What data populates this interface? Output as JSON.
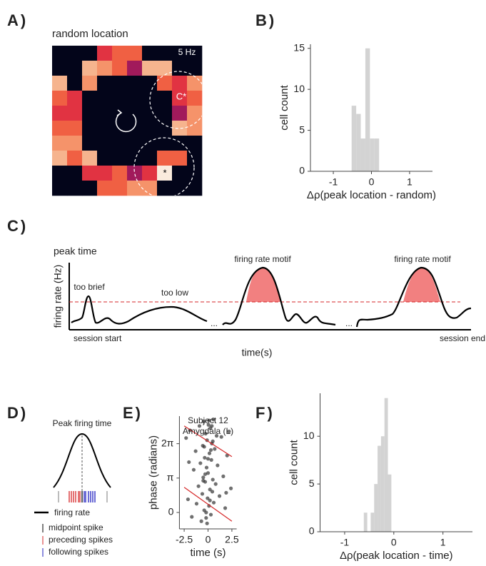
{
  "chart_data": [
    {
      "type": "heatmap",
      "panel": "A)",
      "title": "random location",
      "values": [
        [
          0,
          0,
          0,
          2.5,
          3,
          3,
          0,
          0,
          0,
          0
        ],
        [
          0,
          0,
          4,
          3.5,
          3,
          1.5,
          4,
          4,
          0,
          0
        ],
        [
          4,
          0,
          3.5,
          0,
          0,
          0,
          0,
          3,
          2.5,
          3.5
        ],
        [
          3,
          2.5,
          0,
          0,
          0,
          0,
          0,
          0,
          2.5,
          3
        ],
        [
          2.5,
          2.5,
          0,
          0,
          0,
          0,
          0,
          0,
          1.5,
          3.5
        ],
        [
          3,
          3,
          0,
          0,
          0,
          0,
          0,
          0,
          4,
          3.5
        ],
        [
          3.5,
          3.5,
          0,
          0,
          0,
          0,
          0,
          0,
          0,
          0
        ],
        [
          4,
          3,
          4,
          0,
          0,
          0,
          0,
          3,
          3,
          0
        ],
        [
          0,
          0,
          2.5,
          2.5,
          3,
          1.5,
          2.5,
          5,
          0,
          0
        ],
        [
          0,
          0,
          0,
          3,
          3,
          3.5,
          3.5,
          0,
          0,
          0
        ]
      ],
      "annotations": [
        "5 Hz",
        "C*",
        "*"
      ]
    },
    {
      "type": "histogram",
      "panel": "B)",
      "xlabel": "Δρ(peak location - random)",
      "ylabel": "cell count",
      "bins": [
        -0.52,
        -0.4,
        -0.28,
        -0.16,
        -0.04,
        0.08,
        0.2
      ],
      "values": [
        8,
        7,
        4,
        15,
        4,
        4
      ],
      "color": "#d3d3d3",
      "xlim": [
        -1.6,
        1.6
      ],
      "xticks": [
        -1,
        0,
        1
      ],
      "ylim": [
        0,
        15.5
      ],
      "yticks": [
        0,
        5,
        10,
        15
      ]
    },
    {
      "type": "scatter",
      "panel": "E)",
      "title": "Subject 12",
      "subtitle": "Amygdala (L)",
      "xlabel": "time (s)",
      "ylabel": "phase (radians)",
      "xlim": [
        -3,
        3
      ],
      "xticks": [
        -2.5,
        0,
        2.5
      ],
      "ylim": [
        -1.5,
        8.8
      ],
      "yticks": [
        {
          "value": 0,
          "label": "0"
        },
        {
          "value": 3.1416,
          "label": "π"
        },
        {
          "value": 6.2832,
          "label": "2π"
        }
      ],
      "series": [
        {
          "color": "#333333",
          "x": [
            -2.3,
            -2.1,
            -1.9,
            -1.7,
            -1.5,
            -1.3,
            -1.2,
            -1.0,
            -0.9,
            -0.8,
            -0.7,
            -0.6,
            -0.55,
            -0.5,
            -0.45,
            -0.4,
            -0.35,
            -0.3,
            -0.25,
            -0.2,
            -0.15,
            -0.1,
            -0.05,
            0,
            0.05,
            0.1,
            0.15,
            0.2,
            0.25,
            0.3,
            0.35,
            0.4,
            0.45,
            0.5,
            0.55,
            0.6,
            0.7,
            0.8,
            0.9,
            1.0,
            1.2,
            1.4,
            1.6,
            1.8,
            2.0,
            2.2,
            2.4,
            -0.4,
            -0.2,
            0,
            0.2,
            0.4,
            -0.3,
            0.1,
            0.3,
            -0.1,
            -0.5,
            0.5,
            -2.0,
            1.9
          ],
          "values": [
            6.8,
            1.2,
            7.5,
            -0.4,
            3.9,
            5.6,
            0.8,
            2.4,
            7.9,
            4.5,
            -0.8,
            1.7,
            6.1,
            3.2,
            8.3,
            0.2,
            5.0,
            2.8,
            7.2,
            -0.5,
            4.1,
            6.6,
            1.3,
            3.6,
            8.0,
            0.6,
            5.4,
            2.1,
            7.7,
            -0.2,
            4.8,
            6.3,
            1.9,
            3.0,
            8.5,
            0.9,
            5.8,
            2.6,
            7.0,
            4.3,
            1.5,
            6.9,
            3.3,
            0.4,
            5.2,
            7.4,
            2.2,
            6.0,
            0.0,
            4.9,
            1.1,
            7.9,
            3.5,
            8.4,
            5.7,
            -1.0,
            2.9,
            6.5,
            4.6,
            1.8
          ]
        },
        {
          "type": "line",
          "color": "#d62728",
          "x": [
            -2.5,
            2.5
          ],
          "values": [
            7.9,
            5.1
          ]
        },
        {
          "type": "line",
          "color": "#d62728",
          "x": [
            -2.5,
            2.5
          ],
          "values": [
            2.3,
            -0.8
          ]
        }
      ]
    },
    {
      "type": "histogram",
      "panel": "F)",
      "xlabel": "Δρ(peak location - time)",
      "ylabel": "cell count",
      "bins": [
        -0.61,
        -0.54,
        -0.47,
        -0.4,
        -0.33,
        -0.26,
        -0.19,
        -0.12,
        -0.05
      ],
      "values": [
        2,
        0,
        2,
        5,
        9,
        10,
        14,
        6
      ],
      "color": "#d3d3d3",
      "xlim": [
        -1.5,
        1.6
      ],
      "xticks": [
        -1,
        0,
        1
      ],
      "ylim": [
        0,
        14.5
      ],
      "yticks": [
        0,
        5,
        10
      ]
    }
  ],
  "panel_c": {
    "panel": "C)",
    "title": "peak time",
    "ylabel": "firing rate (Hz)",
    "xlabel": "time(s)",
    "labels": [
      "too brief",
      "too low",
      "firing rate motif",
      "firing rate motif",
      "session start",
      "session end",
      "...",
      "..."
    ]
  },
  "panel_d": {
    "panel": "D)",
    "title": "Peak firing time",
    "legend": [
      "firing rate",
      "midpoint spike",
      "preceding spikes",
      "following spikes"
    ]
  }
}
